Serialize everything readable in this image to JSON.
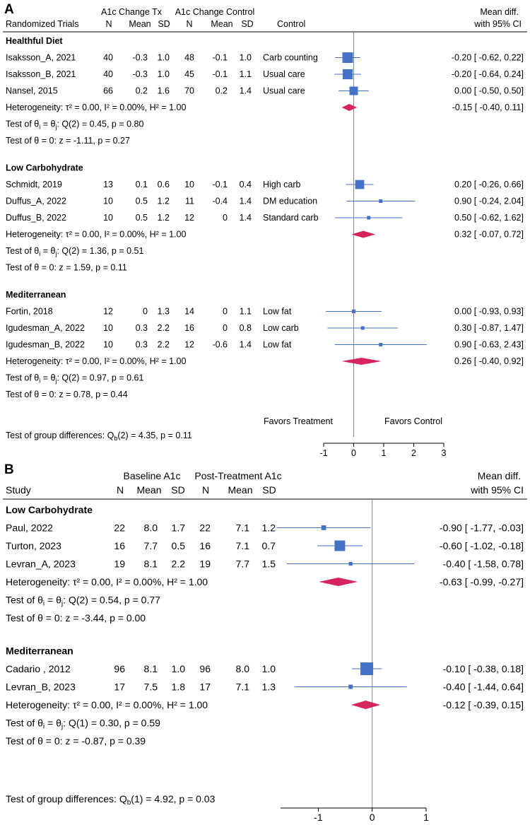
{
  "colors": {
    "square": "#4472C4",
    "ci_line": "#4472C4",
    "diamond": "#D6245C",
    "axis": "#888888",
    "rule": "#000000"
  },
  "panels": [
    {
      "label": "A",
      "group_header_1": "A1c Change Tx",
      "group_header_2": "A1c Change Control",
      "col_study": "Randomized Trials",
      "col_n": "N",
      "col_mean": "Mean",
      "col_sd": "SD",
      "col_control": "Control",
      "col_effect_1": "Mean diff.",
      "col_effect_2": "with 95% CI",
      "favors_left": "Favors Treatment",
      "favors_right": "Favors Control",
      "test_group_differences": {
        "prefix": "Test of group differences: Q",
        "sub": "b",
        "suffix": "(2) = 4.35, p = 0.11"
      }
    },
    {
      "label": "B",
      "group_header_1": "Baseline A1c",
      "group_header_2": "Post-Treatment A1c",
      "col_study": "Study",
      "col_n": "N",
      "col_mean": "Mean",
      "col_sd": "SD",
      "col_effect_1": "Mean diff.",
      "col_effect_2": "with 95% CI",
      "test_group_differences": {
        "prefix": "Test of group differences: Q",
        "sub": "b",
        "suffix": "(1) = 4.92, p = 0.03"
      }
    }
  ],
  "chart_data": [
    {
      "type": "forest",
      "panel": "A",
      "xlim": [
        -1,
        3
      ],
      "xticks": [
        -1,
        0,
        1,
        2,
        3
      ],
      "reference_line": 0,
      "subgroups": [
        {
          "name": "Healthful Diet",
          "studies": [
            {
              "name": "Isaksson_A, 2021",
              "n1": "40",
              "mean1": "-0.3",
              "sd1": "1.0",
              "n2": "48",
              "mean2": "-0.1",
              "sd2": "1.0",
              "control": "Carb counting",
              "est": -0.2,
              "lo": -0.62,
              "hi": 0.22,
              "ci_text": "-0.20 [ -0.62,  0.22]",
              "weight": 1.0
            },
            {
              "name": "Isaksson_B, 2021",
              "n1": "40",
              "mean1": "-0.3",
              "sd1": "1.0",
              "n2": "45",
              "mean2": "-0.1",
              "sd2": "1.1",
              "control": "Usual care",
              "est": -0.2,
              "lo": -0.64,
              "hi": 0.24,
              "ci_text": "-0.20 [ -0.64,  0.24]",
              "weight": 0.95
            },
            {
              "name": "Nansel, 2015",
              "n1": "66",
              "mean1": "0.2",
              "sd1": "1.6",
              "n2": "70",
              "mean2": "0.2",
              "sd2": "1.4",
              "control": "Usual care",
              "est": 0.0,
              "lo": -0.5,
              "hi": 0.5,
              "ci_text": "0.00 [ -0.50,  0.50]",
              "weight": 0.8
            }
          ],
          "pooled": {
            "est": -0.15,
            "lo": -0.4,
            "hi": 0.11,
            "ci_text": "-0.15 [ -0.40,  0.11]"
          },
          "heterogeneity": "Heterogeneity: τ² = 0.00, I² = 0.00%, H² = 1.00",
          "test_q_stat": "(2) = 0.45, p = 0.80",
          "test_z": "Test of θ = 0: z = -1.11, p = 0.27"
        },
        {
          "name": "Low Carbohydrate",
          "studies": [
            {
              "name": "Schmidt, 2019",
              "n1": "13",
              "mean1": "0.1",
              "sd1": "0.6",
              "n2": "10",
              "mean2": "-0.1",
              "sd2": "0.4",
              "control": "High carb",
              "est": 0.2,
              "lo": -0.26,
              "hi": 0.66,
              "ci_text": "0.20 [ -0.26,  0.66]",
              "weight": 0.85
            },
            {
              "name": "Duffus_A, 2022",
              "n1": "10",
              "mean1": "0.5",
              "sd1": "1.2",
              "n2": "11",
              "mean2": "-0.4",
              "sd2": "1.4",
              "control": "DM education",
              "est": 0.9,
              "lo": -0.24,
              "hi": 2.04,
              "ci_text": "0.90 [ -0.24,  2.04]",
              "weight": 0.3
            },
            {
              "name": "Duffus_B, 2022",
              "n1": "10",
              "mean1": "0.5",
              "sd1": "1.2",
              "n2": "12",
              "mean2": "0",
              "sd2": "1.4",
              "control": "Standard carb",
              "est": 0.5,
              "lo": -0.62,
              "hi": 1.62,
              "ci_text": "0.50 [ -0.62,  1.62]",
              "weight": 0.3
            }
          ],
          "pooled": {
            "est": 0.32,
            "lo": -0.07,
            "hi": 0.72,
            "ci_text": "0.32 [ -0.07,  0.72]"
          },
          "heterogeneity": "Heterogeneity: τ² = 0.00, I² = 0.00%, H² = 1.00",
          "test_q_stat": "(2) = 1.36, p = 0.51",
          "test_z": "Test of θ = 0: z = 1.59, p = 0.11"
        },
        {
          "name": "Mediterranean",
          "studies": [
            {
              "name": "Fortin, 2018",
              "n1": "12",
              "mean1": "0",
              "sd1": "1.3",
              "n2": "14",
              "mean2": "0",
              "sd2": "1.1",
              "control": "Low fat",
              "est": 0.0,
              "lo": -0.93,
              "hi": 0.93,
              "ci_text": "0.00 [ -0.93,  0.93]",
              "weight": 0.35
            },
            {
              "name": "Igudesman_A, 2022",
              "n1": "10",
              "mean1": "0.3",
              "sd1": "2.2",
              "n2": "16",
              "mean2": "0",
              "sd2": "0.8",
              "control": "Low carb",
              "est": 0.3,
              "lo": -0.87,
              "hi": 1.47,
              "ci_text": "0.30 [ -0.87,  1.47]",
              "weight": 0.3
            },
            {
              "name": "Igudesman_B, 2022",
              "n1": "10",
              "mean1": "0.3",
              "sd1": "2.2",
              "n2": "12",
              "mean2": "-0.6",
              "sd2": "1.4",
              "control": "Low fat",
              "est": 0.9,
              "lo": -0.63,
              "hi": 2.43,
              "ci_text": "0.90 [ -0.63,  2.43]",
              "weight": 0.25
            }
          ],
          "pooled": {
            "est": 0.26,
            "lo": -0.4,
            "hi": 0.92,
            "ci_text": "0.26 [ -0.40,  0.92]"
          },
          "heterogeneity": "Heterogeneity: τ² = 0.00, I² = 0.00%, H² = 1.00",
          "test_q_stat": "(2) = 0.97, p = 0.61",
          "test_z": "Test of θ = 0: z = 0.78, p = 0.44"
        }
      ]
    },
    {
      "type": "forest",
      "panel": "B",
      "xlim": [
        -1.7,
        1
      ],
      "xticks": [
        -1,
        0,
        1
      ],
      "reference_line": 0,
      "subgroups": [
        {
          "name": "Low Carbohydrate",
          "studies": [
            {
              "name": "Paul, 2022",
              "n1": "22",
              "mean1": "8.0",
              "sd1": "1.7",
              "n2": "22",
              "mean2": "7.1",
              "sd2": "1.2",
              "est": -0.9,
              "lo": -1.77,
              "hi": -0.03,
              "ci_text": "-0.90 [ -1.77, -0.03]",
              "weight": 0.45
            },
            {
              "name": "Turton, 2023",
              "n1": "16",
              "mean1": "7.7",
              "sd1": "0.5",
              "n2": "16",
              "mean2": "7.1",
              "sd2": "0.7",
              "est": -0.6,
              "lo": -1.02,
              "hi": -0.18,
              "ci_text": "-0.60 [ -1.02, -0.18]",
              "weight": 1.0
            },
            {
              "name": "Levran_A, 2023",
              "n1": "19",
              "mean1": "8.1",
              "sd1": "2.2",
              "n2": "19",
              "mean2": "7.7",
              "sd2": "1.5",
              "est": -0.4,
              "lo": -1.58,
              "hi": 0.78,
              "ci_text": "-0.40 [ -1.58,  0.78]",
              "weight": 0.35
            }
          ],
          "pooled": {
            "est": -0.63,
            "lo": -0.99,
            "hi": -0.27,
            "ci_text": "-0.63 [ -0.99, -0.27]"
          },
          "heterogeneity": "Heterogeneity: τ² = 0.00, I² = 0.00%, H² = 1.00",
          "test_q_stat": "(2) = 0.54, p = 0.77",
          "test_z": "Test of θ = 0: z = -3.44, p = 0.00"
        },
        {
          "name": "Mediterranean",
          "studies": [
            {
              "name": "Cadario , 2012",
              "n1": "96",
              "mean1": "8.1",
              "sd1": "1.0",
              "n2": "96",
              "mean2": "8.0",
              "sd2": "1.0",
              "est": -0.1,
              "lo": -0.38,
              "hi": 0.18,
              "ci_text": "-0.10 [ -0.38,  0.18]",
              "weight": 1.2
            },
            {
              "name": "Levran_B, 2023",
              "n1": "17",
              "mean1": "7.5",
              "sd1": "1.8",
              "n2": "17",
              "mean2": "7.1",
              "sd2": "1.3",
              "est": -0.4,
              "lo": -1.44,
              "hi": 0.64,
              "ci_text": "-0.40 [ -1.44,  0.64]",
              "weight": 0.4
            }
          ],
          "pooled": {
            "est": -0.12,
            "lo": -0.39,
            "hi": 0.15,
            "ci_text": "-0.12 [ -0.39,  0.15]"
          },
          "heterogeneity": "Heterogeneity: τ² = 0.00, I² = 0.00%, H² = 1.00",
          "test_q_stat": "(1) = 0.30, p = 0.59",
          "test_z": "Test of θ = 0: z = -0.87, p = 0.39"
        }
      ]
    }
  ]
}
